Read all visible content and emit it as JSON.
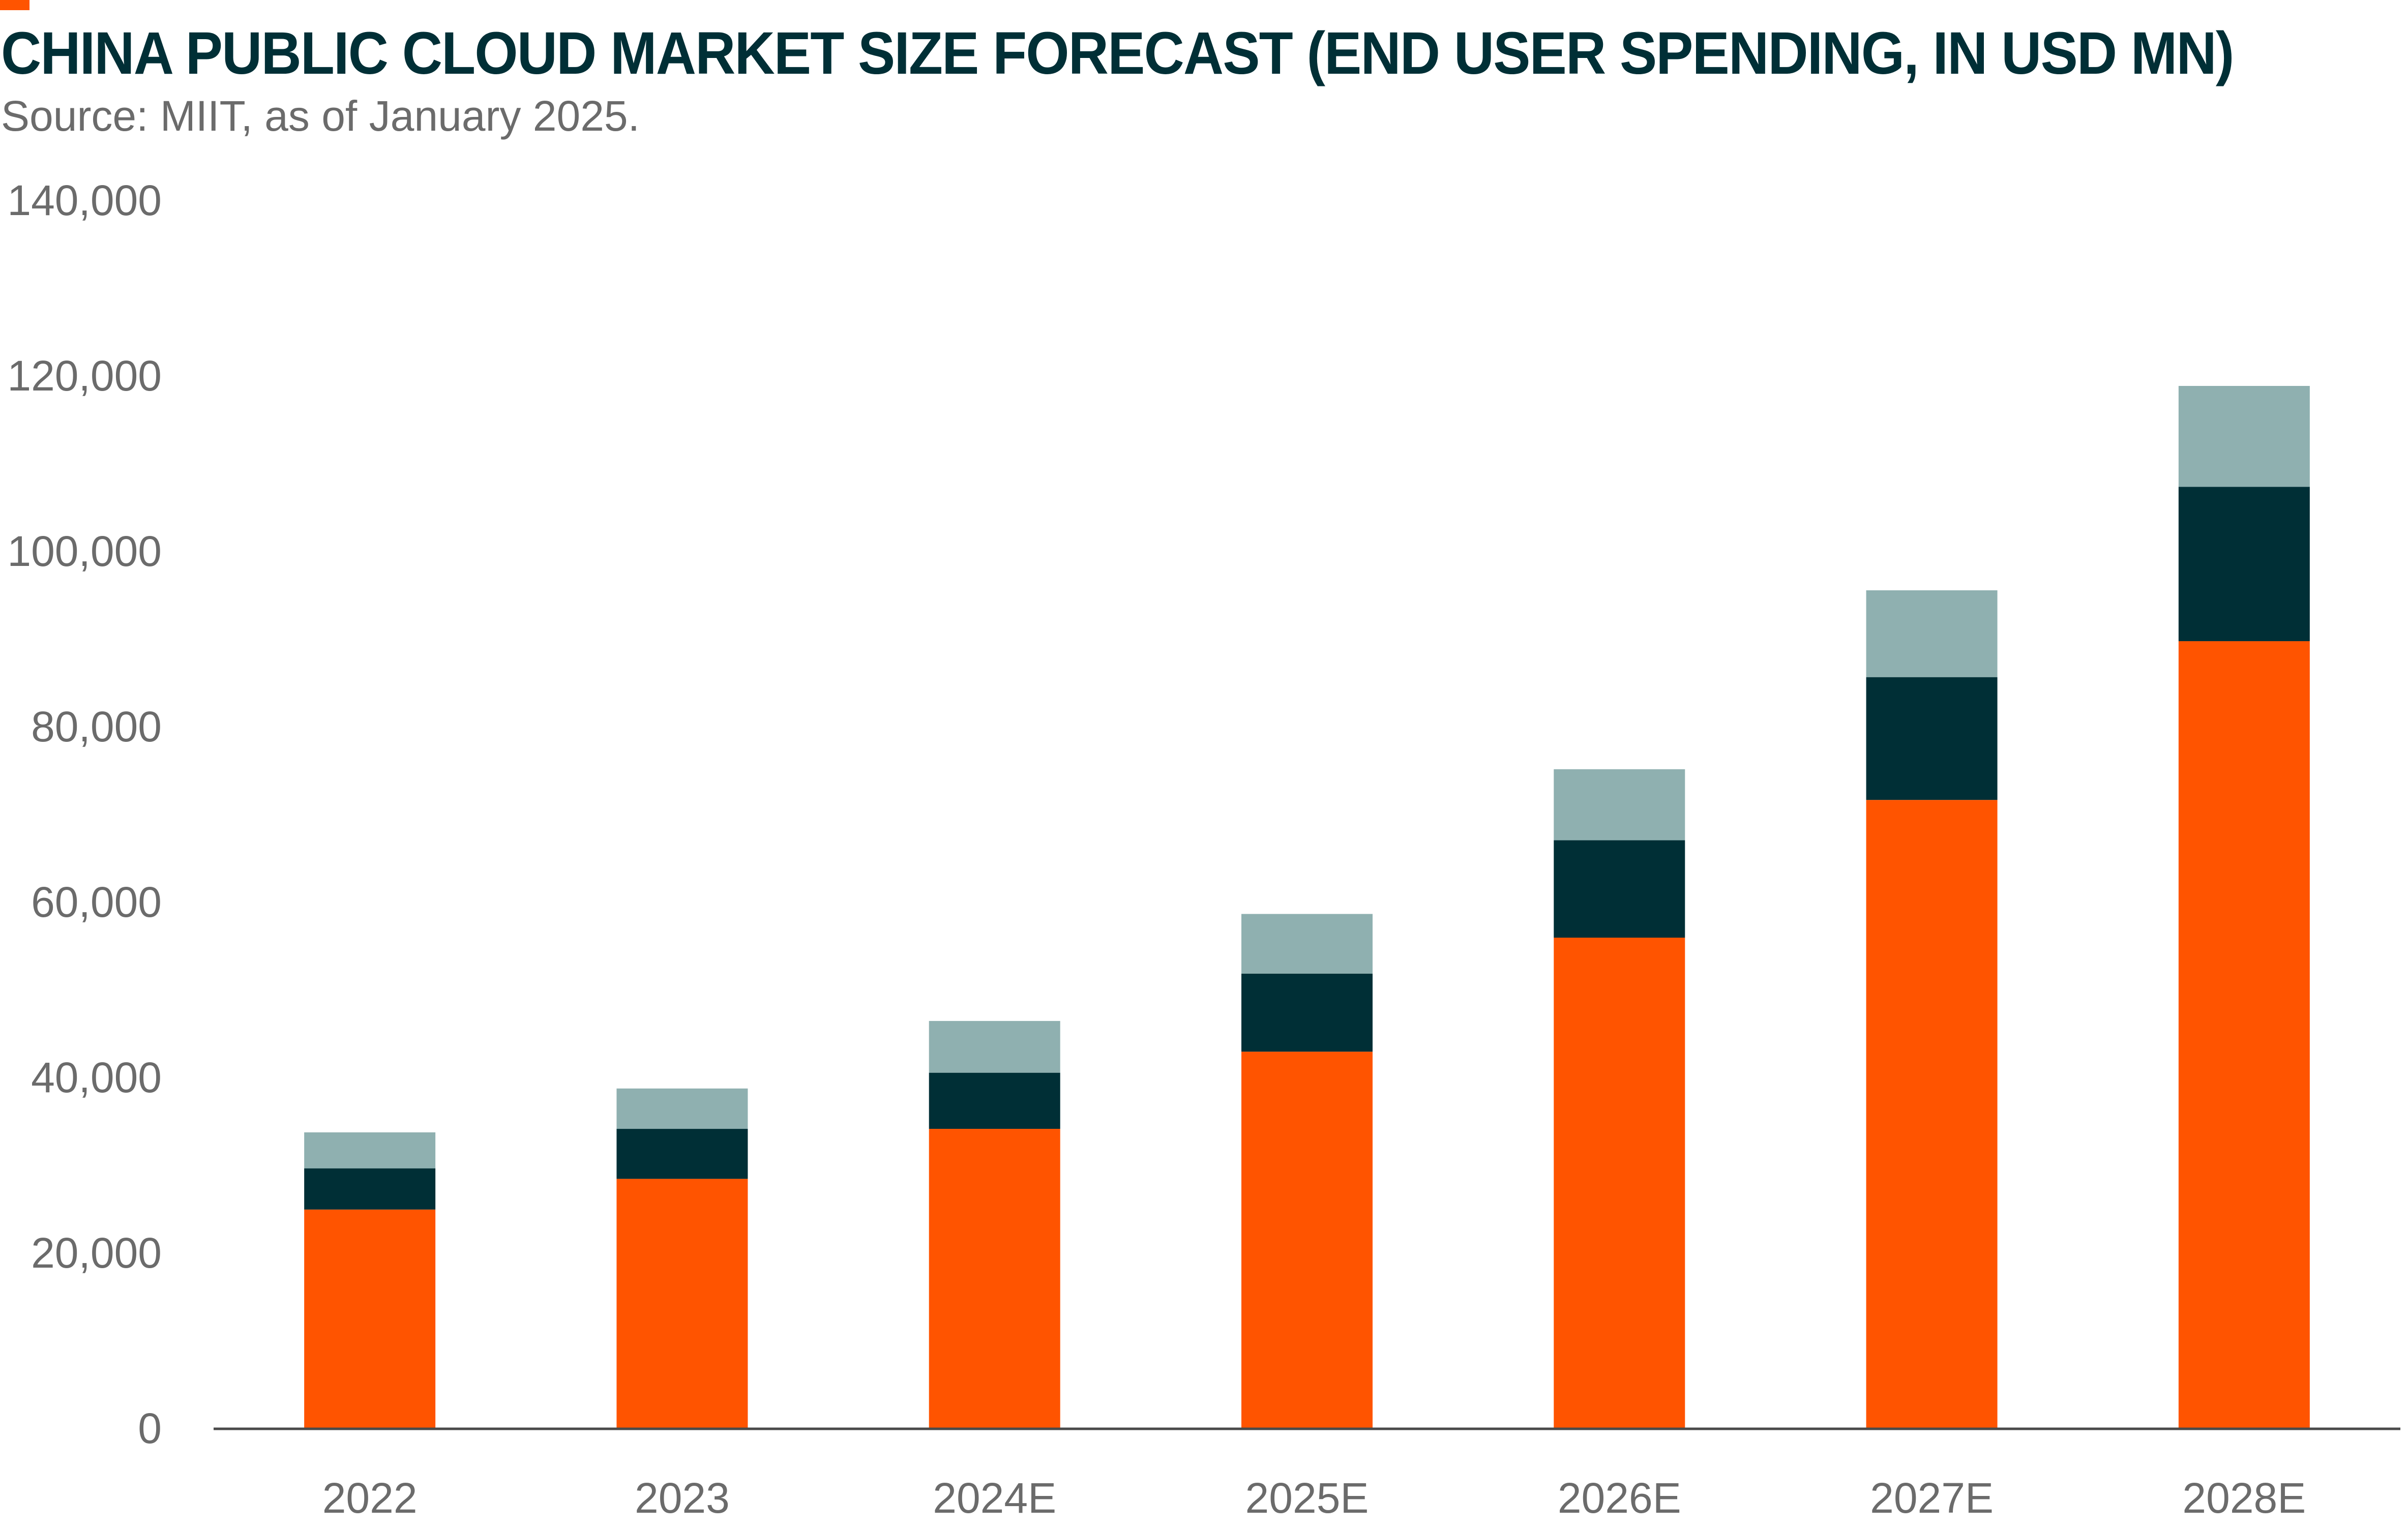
{
  "title": "CHINA PUBLIC CLOUD MARKET SIZE FORECAST (END USER SPENDING, IN USD MN)",
  "subtitle": "Source: MIIT, as of January 2025.",
  "colors": {
    "accent": "#ff5400",
    "title": "#002f36",
    "text": "#6b6b6b",
    "axis": "#4a4a4a"
  },
  "chart_data": {
    "type": "bar",
    "stacked": true,
    "title": "CHINA PUBLIC CLOUD MARKET SIZE FORECAST (END USER SPENDING, IN USD MN)",
    "subtitle": "Source: MIIT, as of January 2025.",
    "xlabel": "",
    "ylabel": "",
    "categories": [
      "2022",
      "2023",
      "2024E",
      "2025E",
      "2026E",
      "2027E",
      "2028E"
    ],
    "series": [
      {
        "color": "#ff5400",
        "values": [
          25000,
          28500,
          34200,
          43000,
          56000,
          71700,
          89800
        ]
      },
      {
        "color": "#002f36",
        "values": [
          4700,
          5700,
          6400,
          8900,
          11100,
          14000,
          17600
        ]
      },
      {
        "color": "#8fb0b0",
        "values": [
          4100,
          4600,
          5900,
          6800,
          8100,
          9900,
          11500
        ]
      }
    ],
    "ylim": [
      0,
      140000
    ],
    "yticks": [
      0,
      20000,
      40000,
      60000,
      80000,
      100000,
      120000,
      140000
    ],
    "ytick_labels": [
      "0",
      "20,000",
      "40,000",
      "60,000",
      "80,000",
      "100,000",
      "120,000",
      "140,000"
    ],
    "grid": false,
    "legend": "none"
  }
}
